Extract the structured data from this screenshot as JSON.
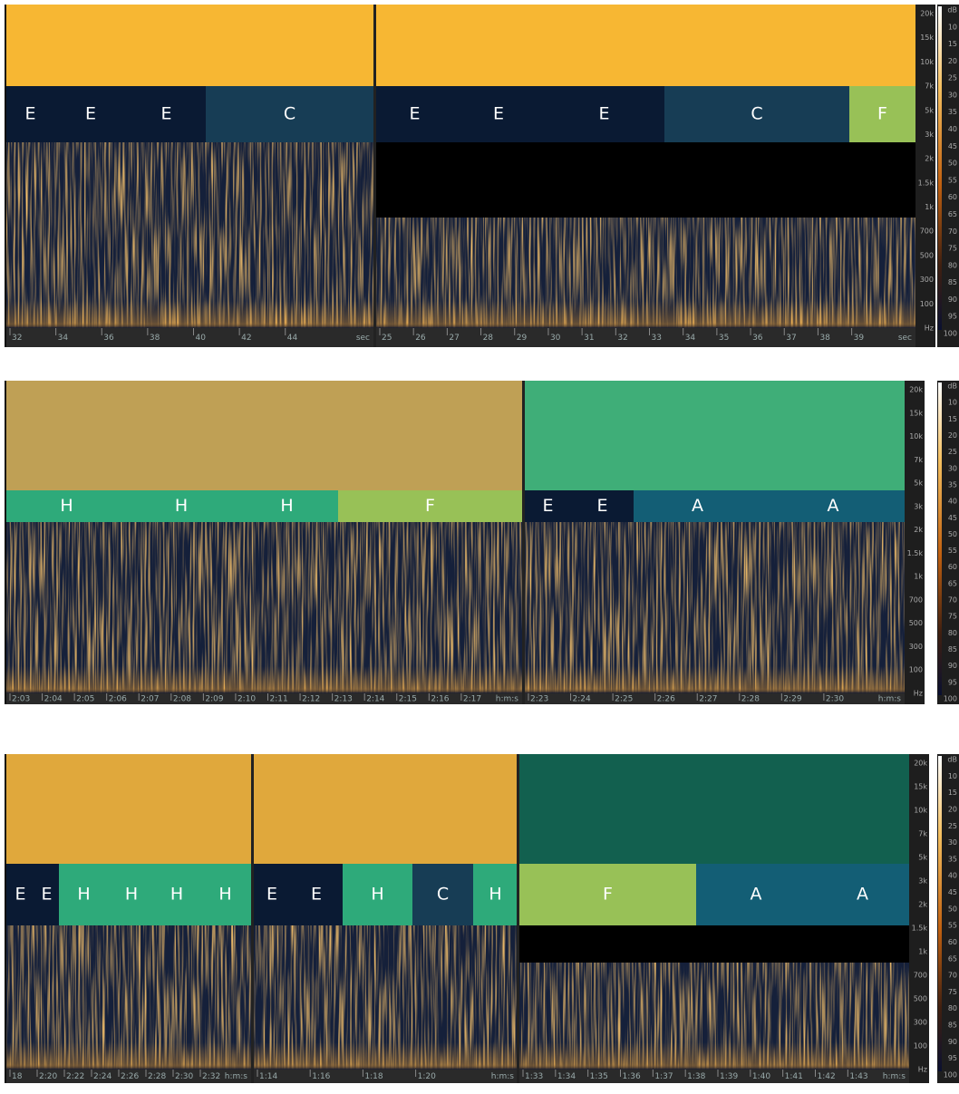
{
  "rows": [
    {
      "panels": [
        {
          "header_color": "#f7b733",
          "segments": [
            "E",
            "E",
            "E",
            "C"
          ],
          "time_labels": [
            "32",
            "34",
            "36",
            "38",
            "40",
            "42",
            "44",
            "sec"
          ]
        },
        {
          "header_color": "#f7b733",
          "segments": [
            "E",
            "E",
            "E",
            "C",
            "F"
          ],
          "time_labels": [
            "25",
            "26",
            "27",
            "28",
            "29",
            "30",
            "31",
            "32",
            "33",
            "34",
            "35",
            "36",
            "37",
            "38",
            "39",
            "sec"
          ]
        }
      ]
    },
    {
      "panels": [
        {
          "header_color": "#bfa055",
          "segments": [
            "H",
            "H",
            "H",
            "F"
          ],
          "time_labels": [
            "2:03",
            "2:04",
            "2:05",
            "2:06",
            "2:07",
            "2:08",
            "2:09",
            "2:10",
            "2:11",
            "2:12",
            "2:13",
            "2:14",
            "2:15",
            "2:16",
            "2:17",
            "h:m:s"
          ]
        },
        {
          "header_color": "#3fae78",
          "segments": [
            "E",
            "E",
            "A",
            "A"
          ],
          "time_labels": [
            "2:23",
            "2:24",
            "2:25",
            "2:26",
            "2:27",
            "2:28",
            "2:29",
            "2:30",
            "h:m:s"
          ]
        }
      ]
    },
    {
      "panels": [
        {
          "header_color": "#e0a83c",
          "segments": [
            "E",
            "E",
            "H",
            "H",
            "H",
            "H"
          ],
          "time_labels": [
            "18",
            "2:20",
            "2:22",
            "2:24",
            "2:26",
            "2:28",
            "2:30",
            "2:32",
            "h:m:s"
          ]
        },
        {
          "header_color": "#e0a83c",
          "segments": [
            "E",
            "E",
            "H",
            "C",
            "H"
          ],
          "time_labels": [
            "1:14",
            "1:16",
            "1:18",
            "1:20",
            "h:m:s"
          ]
        },
        {
          "header_color": "#12604f",
          "segments": [
            "F",
            "A",
            "A"
          ],
          "time_labels": [
            "1:33",
            "1:34",
            "1:35",
            "1:36",
            "1:37",
            "1:38",
            "1:39",
            "1:40",
            "1:41",
            "1:42",
            "1:43",
            "h:m:s"
          ]
        }
      ]
    }
  ],
  "segment_colors": {
    "E": "#0a1a33",
    "C": "#173d55",
    "F": "#98c157",
    "H": "#2eaa7a",
    "A": "#135e75"
  },
  "frequency_labels": [
    "20k",
    "15k",
    "10k",
    "7k",
    "5k",
    "3k",
    "2k",
    "1.5k",
    "1k",
    "700",
    "500",
    "300",
    "100",
    "Hz"
  ],
  "db_labels": [
    "dB",
    "10",
    "15",
    "20",
    "25",
    "30",
    "35",
    "40",
    "45",
    "50",
    "55",
    "60",
    "65",
    "70",
    "75",
    "80",
    "85",
    "90",
    "95",
    "100"
  ]
}
